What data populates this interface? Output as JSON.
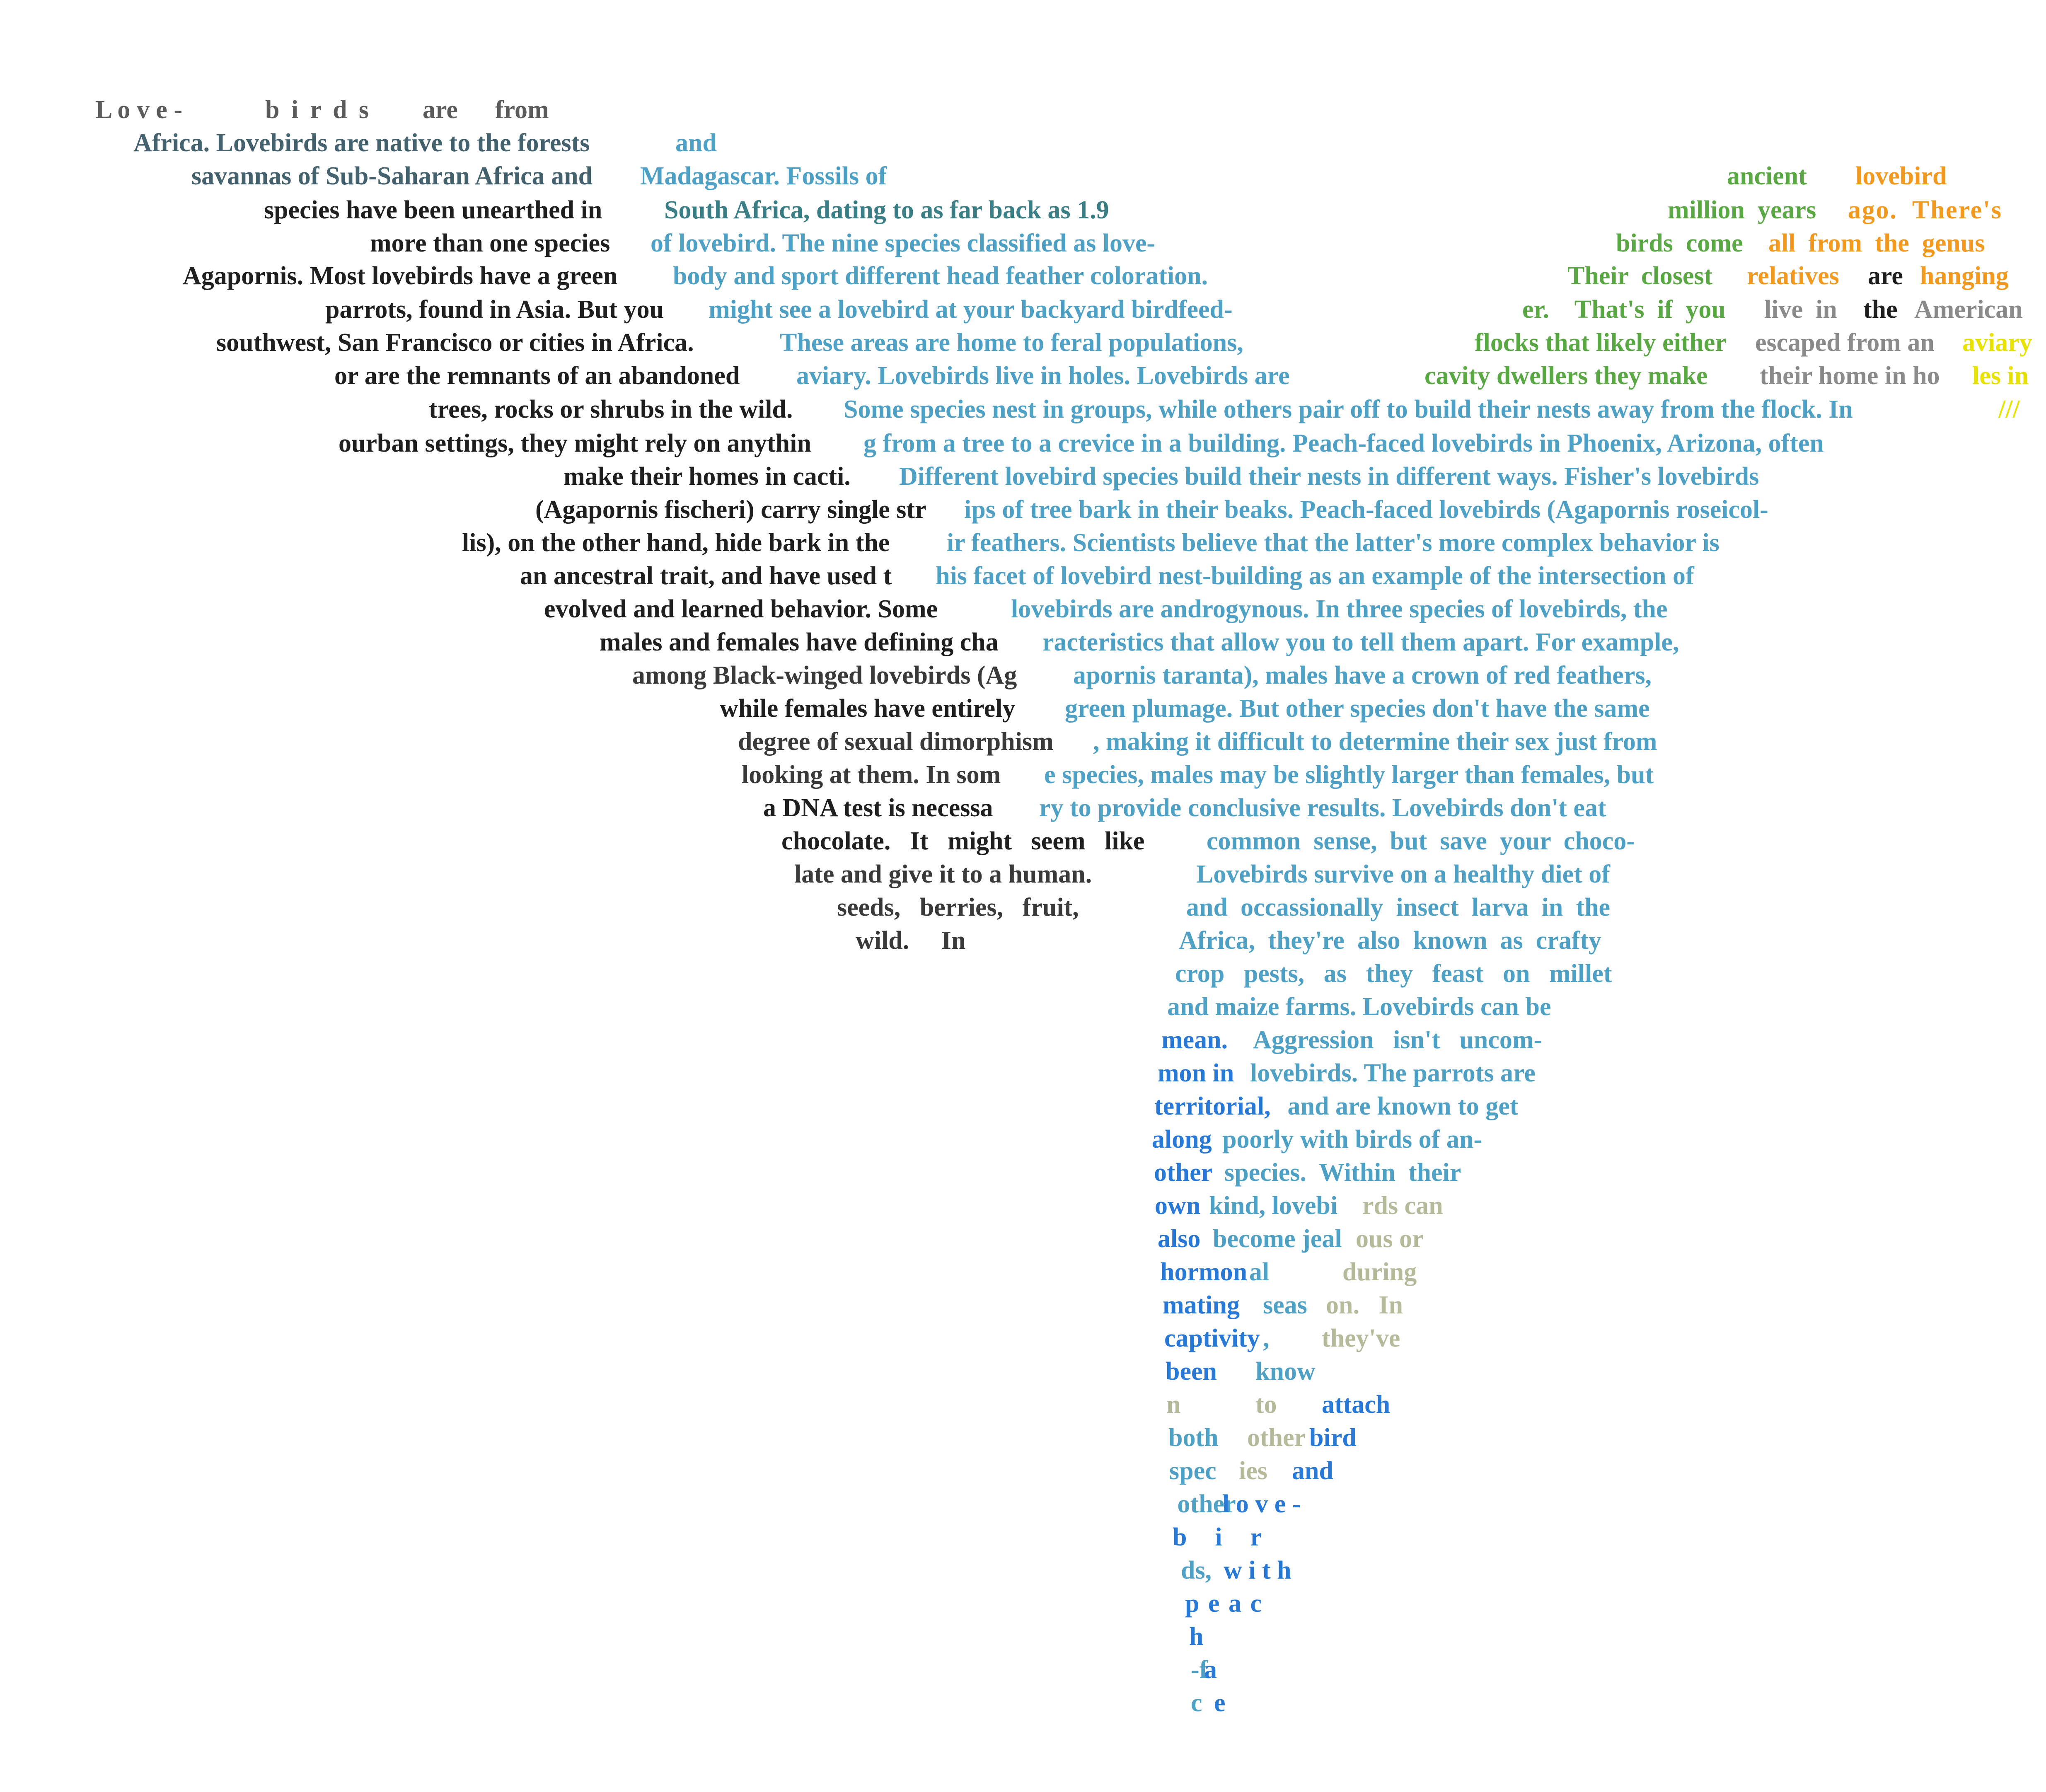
{
  "colors": {
    "black": "#1f1f1f",
    "dark_gray": "#3a3a3a",
    "gray": "#5b5b5b",
    "mid_gray": "#8a8a8a",
    "slate": "#43626e",
    "teal": "#3a7f86",
    "sky": "#4ea1c4",
    "blue": "#2878d6",
    "green": "#5aa844",
    "orange": "#f29a1f",
    "yellow": "#e7e200",
    "beige": "#b6b99a"
  },
  "segments": [
    {
      "text": "L o v e -",
      "color": "gray"
    },
    {
      "text": "b i r d s",
      "color": "gray"
    },
    {
      "text": "are",
      "color": "gray"
    },
    {
      "text": "from",
      "color": "gray"
    },
    {
      "text": "Africa. Lovebirds are native to the forests ",
      "color": "slate"
    },
    {
      "text": "and",
      "color": "sky"
    },
    {
      "text": "savannas of Sub-Saharan Africa and ",
      "color": "slate"
    },
    {
      "text": "Madagascar. Fossils of",
      "color": "sky"
    },
    {
      "text": "ancient",
      "color": "green"
    },
    {
      "text": "lovebird",
      "color": "orange"
    },
    {
      "text": "species have been unearthed in ",
      "color": "black"
    },
    {
      "text": "South Africa, dating to as far back as 1.9",
      "color": "teal"
    },
    {
      "text": "million  years ",
      "color": "green"
    },
    {
      "text": "ago.  There's",
      "color": "orange"
    },
    {
      "text": "more than one species ",
      "color": "black"
    },
    {
      "text": "of lovebird. The nine species classified as love-",
      "color": "sky"
    },
    {
      "text": "birds  come ",
      "color": "green"
    },
    {
      "text": "all  from  the  genus",
      "color": "orange"
    },
    {
      "text": "Agapornis. Most lovebirds have a green ",
      "color": "black"
    },
    {
      "text": "body and sport different head feather coloration.",
      "color": "sky"
    },
    {
      "text": "Their  closest ",
      "color": "green"
    },
    {
      "text": "relatives ",
      "color": "orange"
    },
    {
      "text": "are ",
      "color": "black"
    },
    {
      "text": "hanging",
      "color": "orange"
    },
    {
      "text": "parrots, found in Asia. But you ",
      "color": "black"
    },
    {
      "text": "might see a lovebird at your backyard birdfeed-",
      "color": "sky"
    },
    {
      "text": "er.    That's  if  you ",
      "color": "green"
    },
    {
      "text": "live  in ",
      "color": "mid_gray"
    },
    {
      "text": "the ",
      "color": "black"
    },
    {
      "text": "American",
      "color": "mid_gray"
    },
    {
      "text": "southwest, San Francisco or cities in Africa. ",
      "color": "black"
    },
    {
      "text": "These areas are home to feral populations,",
      "color": "sky"
    },
    {
      "text": "flocks that likely either ",
      "color": "green"
    },
    {
      "text": "escaped from an ",
      "color": "mid_gray"
    },
    {
      "text": "aviary",
      "color": "yellow"
    },
    {
      "text": "or are the remnants of an abandoned ",
      "color": "black"
    },
    {
      "text": "aviary. Lovebirds live in holes. Lovebirds are",
      "color": "sky"
    },
    {
      "text": "cavity dwellers they make ",
      "color": "green"
    },
    {
      "text": "their home in ho",
      "color": "mid_gray"
    },
    {
      "text": "les in",
      "color": "yellow"
    },
    {
      "text": "trees, rocks or shrubs in the wild. ",
      "color": "black"
    },
    {
      "text": "Some species nest in groups, while others pair off to build their nests away from the flock. In",
      "color": "sky"
    },
    {
      "text": "///",
      "color": "yellow"
    },
    {
      "text": "ourban settings, they might rely on anythin",
      "color": "black"
    },
    {
      "text": "g from a tree to a crevice in a building. Peach-faced lovebirds in Phoenix, Arizona, often",
      "color": "sky"
    },
    {
      "text": "make their homes in cacti. ",
      "color": "black"
    },
    {
      "text": "Different lovebird species build their nests in different ways. Fisher's lovebirds",
      "color": "sky"
    },
    {
      "text": "(Agapornis fischeri) carry single str",
      "color": "black"
    },
    {
      "text": "ips of tree bark in their beaks. Peach-faced lovebirds (Agapornis roseicol-",
      "color": "sky"
    },
    {
      "text": "lis), on the other hand, hide bark in the",
      "color": "black"
    },
    {
      "text": "ir feathers. Scientists believe that the latter's more complex behavior is",
      "color": "sky"
    },
    {
      "text": "an ancestral trait, and have used t",
      "color": "black"
    },
    {
      "text": "his facet of lovebird nest-building as an example of the intersection of",
      "color": "sky"
    },
    {
      "text": "evolved and learned behavior. Some ",
      "color": "black"
    },
    {
      "text": "lovebirds are androgynous. In three species of lovebirds, the",
      "color": "sky"
    },
    {
      "text": "males and females have defining cha",
      "color": "black"
    },
    {
      "text": "racteristics that allow you to tell them apart. For example,",
      "color": "sky"
    },
    {
      "text": "among Black-winged lovebirds (Ag",
      "color": "dark_gray"
    },
    {
      "text": "apornis taranta), males have a crown of red feathers,",
      "color": "sky"
    },
    {
      "text": "while females have entirely ",
      "color": "black"
    },
    {
      "text": "green plumage. But other species don't have the same",
      "color": "sky"
    },
    {
      "text": "degree of sexual dimorphism",
      "color": "dark_gray"
    },
    {
      "text": ", making it difficult to determine their sex just from",
      "color": "sky"
    },
    {
      "text": "looking at them. In som",
      "color": "dark_gray"
    },
    {
      "text": "e species, males may be slightly larger than females, but",
      "color": "sky"
    },
    {
      "text": "a DNA test is necessa",
      "color": "black"
    },
    {
      "text": "ry to provide conclusive results. Lovebirds don't eat",
      "color": "sky"
    },
    {
      "text": "chocolate.   It   might   seem   like",
      "color": "black"
    },
    {
      "text": "common  sense,  but  save  your  choco-",
      "color": "sky"
    },
    {
      "text": "late and give it to a human.",
      "color": "dark_gray"
    },
    {
      "text": "Lovebirds survive on a healthy diet of",
      "color": "sky"
    },
    {
      "text": "seeds,   berries,   fruit,",
      "color": "dark_gray"
    },
    {
      "text": "and  occassionally  insect  larva  in  the",
      "color": "sky"
    },
    {
      "text": "wild.     In",
      "color": "dark_gray"
    },
    {
      "text": "Africa,  they're  also  known  as  crafty",
      "color": "sky"
    },
    {
      "text": "crop   pests,   as   they   feast   on   millet",
      "color": "sky"
    },
    {
      "text": "and maize farms. Lovebirds can be",
      "color": "sky"
    },
    {
      "text": "mean.",
      "color": "blue"
    },
    {
      "text": "Aggression   isn't   uncom-",
      "color": "sky"
    },
    {
      "text": "mon in ",
      "color": "blue"
    },
    {
      "text": "lovebirds. The parrots are",
      "color": "sky"
    },
    {
      "text": "territorial,",
      "color": "blue"
    },
    {
      "text": " and are known to get",
      "color": "sky"
    },
    {
      "text": "along ",
      "color": "blue"
    },
    {
      "text": "poorly with birds of an-",
      "color": "sky"
    },
    {
      "text": "other ",
      "color": "blue"
    },
    {
      "text": "species.  Within  their",
      "color": "sky"
    },
    {
      "text": "own ",
      "color": "blue"
    },
    {
      "text": "kind, lovebi",
      "color": "sky"
    },
    {
      "text": "rds can",
      "color": "beige"
    },
    {
      "text": "also ",
      "color": "blue"
    },
    {
      "text": "become jeal",
      "color": "sky"
    },
    {
      "text": "ous or",
      "color": "beige"
    },
    {
      "text": "hormon",
      "color": "blue"
    },
    {
      "text": "al",
      "color": "sky"
    },
    {
      "text": "during",
      "color": "beige"
    },
    {
      "text": "mating",
      "color": "blue"
    },
    {
      "text": "seas",
      "color": "sky"
    },
    {
      "text": "on.   In",
      "color": "beige"
    },
    {
      "text": "captivity",
      "color": "blue"
    },
    {
      "text": ",",
      "color": "sky"
    },
    {
      "text": "they've",
      "color": "beige"
    },
    {
      "text": "been",
      "color": "blue"
    },
    {
      "text": "know",
      "color": "sky"
    },
    {
      "text": "n",
      "color": "beige"
    },
    {
      "text": "to",
      "color": "beige"
    },
    {
      "text": "attach",
      "color": "blue"
    },
    {
      "text": "both",
      "color": "sky"
    },
    {
      "text": "other",
      "color": "beige"
    },
    {
      "text": "bird",
      "color": "blue"
    },
    {
      "text": "spec",
      "color": "sky"
    },
    {
      "text": "ies",
      "color": "beige"
    },
    {
      "text": "and",
      "color": "blue"
    },
    {
      "text": " other",
      "color": "sky"
    },
    {
      "text": "l o v e -",
      "color": "blue"
    },
    {
      "text": "bir",
      "color": "blue"
    },
    {
      "text": "ds,",
      "color": "sky"
    },
    {
      "text": "w i t h",
      "color": "blue"
    },
    {
      "text": "peac",
      "color": "blue"
    },
    {
      "text": "h",
      "color": "blue"
    },
    {
      "text": "-f",
      "color": "sky"
    },
    {
      "text": "a",
      "color": "blue"
    },
    {
      "text": "c",
      "color": "sky"
    },
    {
      "text": "e",
      "color": "blue"
    }
  ]
}
